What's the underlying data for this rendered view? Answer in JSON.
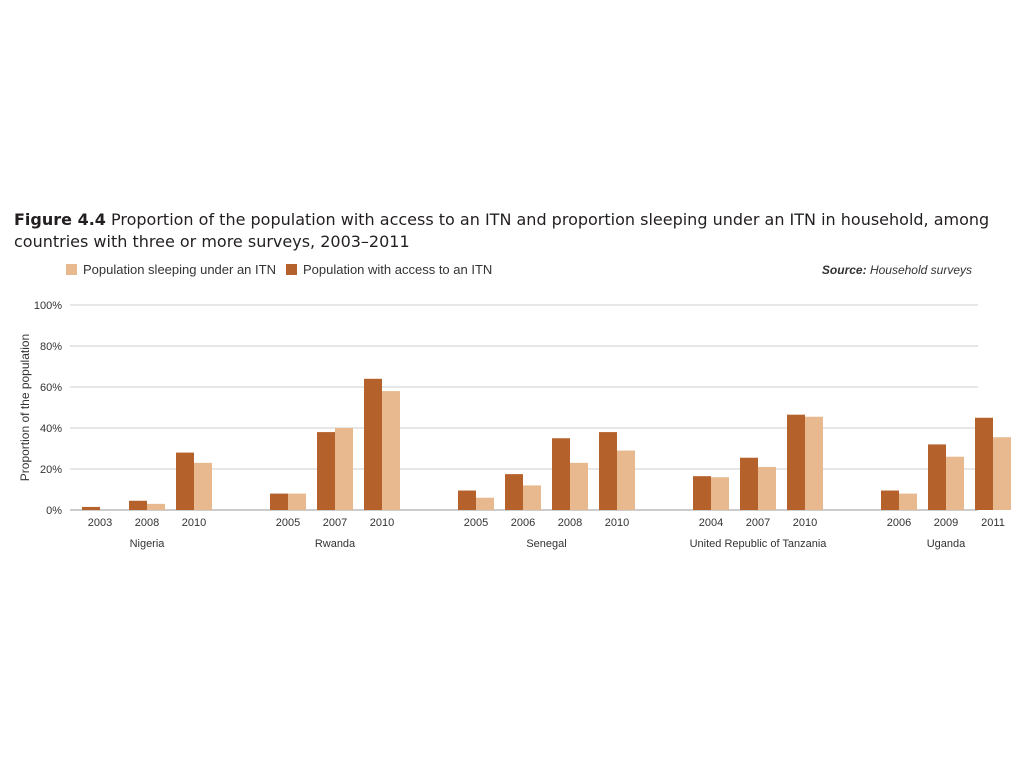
{
  "title": {
    "label": "Figure 4.4",
    "text": "Proportion of the population with access to an ITN and proportion sleeping under an ITN in household, among countries with three or more surveys, 2003–2011"
  },
  "source": {
    "label": "Source:",
    "text": "Household surveys"
  },
  "colors": {
    "access": "#b5612b",
    "sleeping": "#e8b98e",
    "grid": "#cfcfcf",
    "axis": "#9a9a9a"
  },
  "chart_data": {
    "type": "bar",
    "title": "Proportion of the population with access to an ITN and proportion sleeping under an ITN in household, among countries with three or more surveys, 2003–2011",
    "ylabel": "Proportion of the population",
    "ylim": [
      0,
      100
    ],
    "yticks": [
      "0%",
      "20%",
      "40%",
      "60%",
      "80%",
      "100%"
    ],
    "grid": true,
    "legend_position": "top-left",
    "series": [
      {
        "name": "Population sleeping under an ITN",
        "color_key": "sleeping"
      },
      {
        "name": "Population with access to an ITN",
        "color_key": "access"
      }
    ],
    "groups": [
      {
        "country": "Nigeria",
        "surveys": [
          {
            "year": "2003",
            "access": 1.5,
            "sleeping": 0
          },
          {
            "year": "2008",
            "access": 4.5,
            "sleeping": 3
          },
          {
            "year": "2010",
            "access": 28,
            "sleeping": 23
          }
        ]
      },
      {
        "country": "Rwanda",
        "surveys": [
          {
            "year": "2005",
            "access": 8,
            "sleeping": 8
          },
          {
            "year": "2007",
            "access": 38,
            "sleeping": 40
          },
          {
            "year": "2010",
            "access": 64,
            "sleeping": 58
          }
        ]
      },
      {
        "country": "Senegal",
        "surveys": [
          {
            "year": "2005",
            "access": 9.5,
            "sleeping": 6
          },
          {
            "year": "2006",
            "access": 17.5,
            "sleeping": 12
          },
          {
            "year": "2008",
            "access": 35,
            "sleeping": 23
          },
          {
            "year": "2010",
            "access": 38,
            "sleeping": 29
          }
        ]
      },
      {
        "country": "United Republic of Tanzania",
        "surveys": [
          {
            "year": "2004",
            "access": 16.5,
            "sleeping": 16
          },
          {
            "year": "2007",
            "access": 25.5,
            "sleeping": 21
          },
          {
            "year": "2010",
            "access": 46.5,
            "sleeping": 45.5
          }
        ]
      },
      {
        "country": "Uganda",
        "surveys": [
          {
            "year": "2006",
            "access": 9.5,
            "sleeping": 8
          },
          {
            "year": "2009",
            "access": 32,
            "sleeping": 26
          },
          {
            "year": "2011",
            "access": 45,
            "sleeping": 35.5
          }
        ]
      }
    ]
  }
}
